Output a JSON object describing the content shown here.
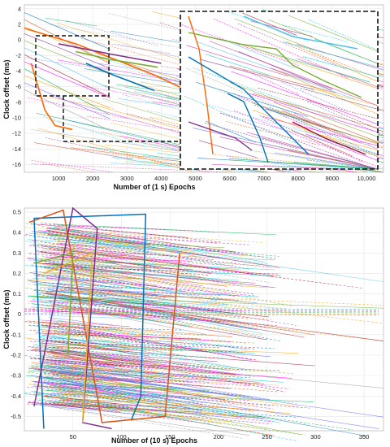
{
  "chart_data": [
    {
      "type": "line",
      "title": "",
      "xlabel": "Number of (1 s) Epochs",
      "ylabel": "Clock offset (ms)",
      "xlim": [
        0,
        10500
      ],
      "ylim": [
        -17,
        4.5
      ],
      "xticks": [
        "1000",
        "2000",
        "3000",
        "4000",
        "5000",
        "6000",
        "7000",
        "8000",
        "9000",
        "10,000"
      ],
      "yticks": [
        "4",
        "2",
        "0",
        "-2",
        "-4",
        "-6",
        "-8",
        "-10",
        "-12",
        "-14",
        "-16"
      ],
      "grid": true,
      "inset": {
        "description_range_x": [
          2000,
          4200
        ],
        "description_range_y": [
          -7.5,
          0.5
        ],
        "placement": "top-right"
      },
      "highlighted_series": [
        {
          "color": "#ff6600",
          "values": [
            [
              0,
              1.5
            ],
            [
              1500,
              -0.5
            ],
            [
              3800,
              -4.5
            ],
            [
              5000,
              -7
            ],
            [
              5200,
              -6
            ],
            [
              5300,
              0
            ],
            [
              6000,
              -1
            ],
            [
              6500,
              2
            ],
            [
              7400,
              1
            ]
          ]
        },
        {
          "color": "#ff6600",
          "values": [
            [
              200,
              -3
            ],
            [
              600,
              -9
            ],
            [
              900,
              -11
            ],
            [
              1400,
              -11.5
            ]
          ]
        },
        {
          "color": "#0072bd",
          "values": [
            [
              1800,
              -3
            ],
            [
              2600,
              -4.5
            ],
            [
              3800,
              -6.5
            ]
          ]
        },
        {
          "color": "#77ac30",
          "values": [
            [
              1500,
              -1.5
            ],
            [
              2500,
              -2.5
            ],
            [
              3900,
              -3.5
            ]
          ]
        },
        {
          "color": "#7e2f8e",
          "values": [
            [
              1000,
              -0.5
            ],
            [
              2500,
              -1.8
            ],
            [
              4000,
              -3
            ]
          ]
        }
      ]
    },
    {
      "type": "line",
      "title": "",
      "xlabel": "Number of (10 s) Epochs",
      "ylabel": "Clock offset (ms)",
      "xlim": [
        0,
        370
      ],
      "ylim": [
        -0.57,
        0.52
      ],
      "xticks": [
        "50",
        "100",
        "150",
        "200",
        "250",
        "300",
        "350"
      ],
      "yticks": [
        "0.5",
        "0.4",
        "0.3",
        "0.2",
        "0.1",
        "0",
        "-0.1",
        "-0.2",
        "-0.3",
        "-0.4",
        "-0.5"
      ],
      "grid": true,
      "highlighted_series": [
        {
          "color": "#0072bd",
          "values": [
            [
              20,
              -0.56
            ],
            [
              10,
              0.47
            ],
            [
              125,
              0.49
            ],
            [
              120,
              -0.4
            ],
            [
              110,
              -0.52
            ]
          ]
        },
        {
          "color": "#d95319",
          "values": [
            [
              5,
              0.45
            ],
            [
              40,
              0.51
            ],
            [
              80,
              -0.53
            ],
            [
              145,
              -0.5
            ],
            [
              160,
              0.3
            ]
          ]
        },
        {
          "color": "#7e2f8e",
          "values": [
            [
              10,
              -0.45
            ],
            [
              50,
              0.52
            ],
            [
              75,
              0.42
            ],
            [
              60,
              -0.53
            ],
            [
              90,
              -0.56
            ]
          ]
        },
        {
          "color": "#edb120",
          "values": [
            [
              20,
              0.2
            ],
            [
              70,
              0.3
            ],
            [
              60,
              -0.53
            ]
          ]
        },
        {
          "color": "#77ac30",
          "values": [
            [
              10,
              0.25
            ],
            [
              50,
              0.3
            ],
            [
              45,
              -0.2
            ]
          ]
        }
      ]
    }
  ]
}
